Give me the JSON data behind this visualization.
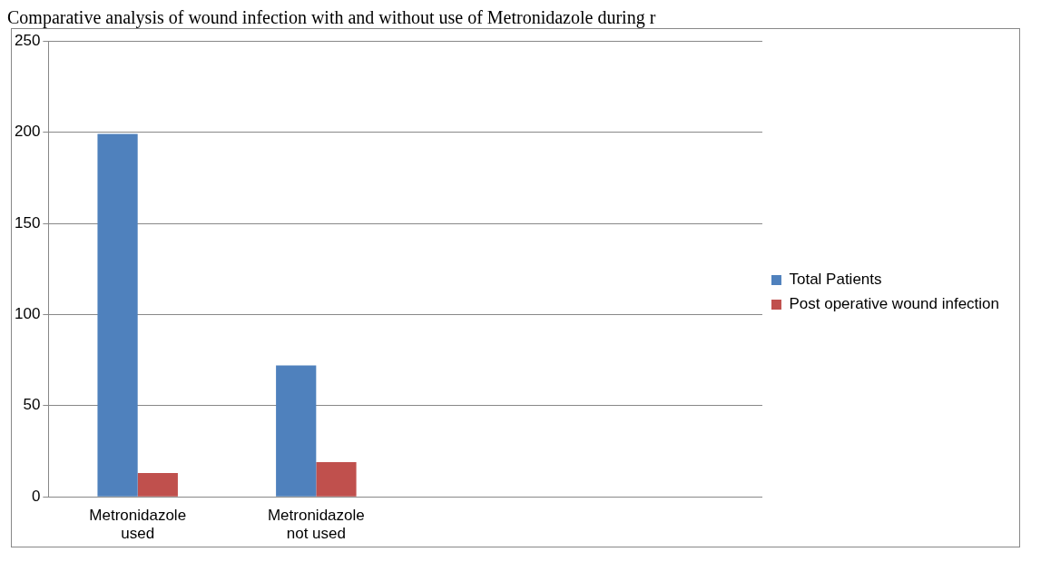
{
  "chart_data": {
    "type": "bar",
    "title": "Comparative analysis of wound infection with and without use of Metronidazole during r",
    "categories": [
      "Metronidazole used",
      "Metronidazole not used",
      null,
      null
    ],
    "series": [
      {
        "name": "Total Patients",
        "color": "#4f81bd",
        "values": [
          199,
          72,
          null,
          null
        ]
      },
      {
        "name": "Post operative wound infection",
        "color": "#c0504d",
        "values": [
          13,
          19,
          null,
          null
        ]
      }
    ],
    "ylim": [
      0,
      250
    ],
    "yticks": [
      0,
      50,
      100,
      150,
      200,
      250
    ],
    "grid": "y",
    "legend": "right"
  }
}
